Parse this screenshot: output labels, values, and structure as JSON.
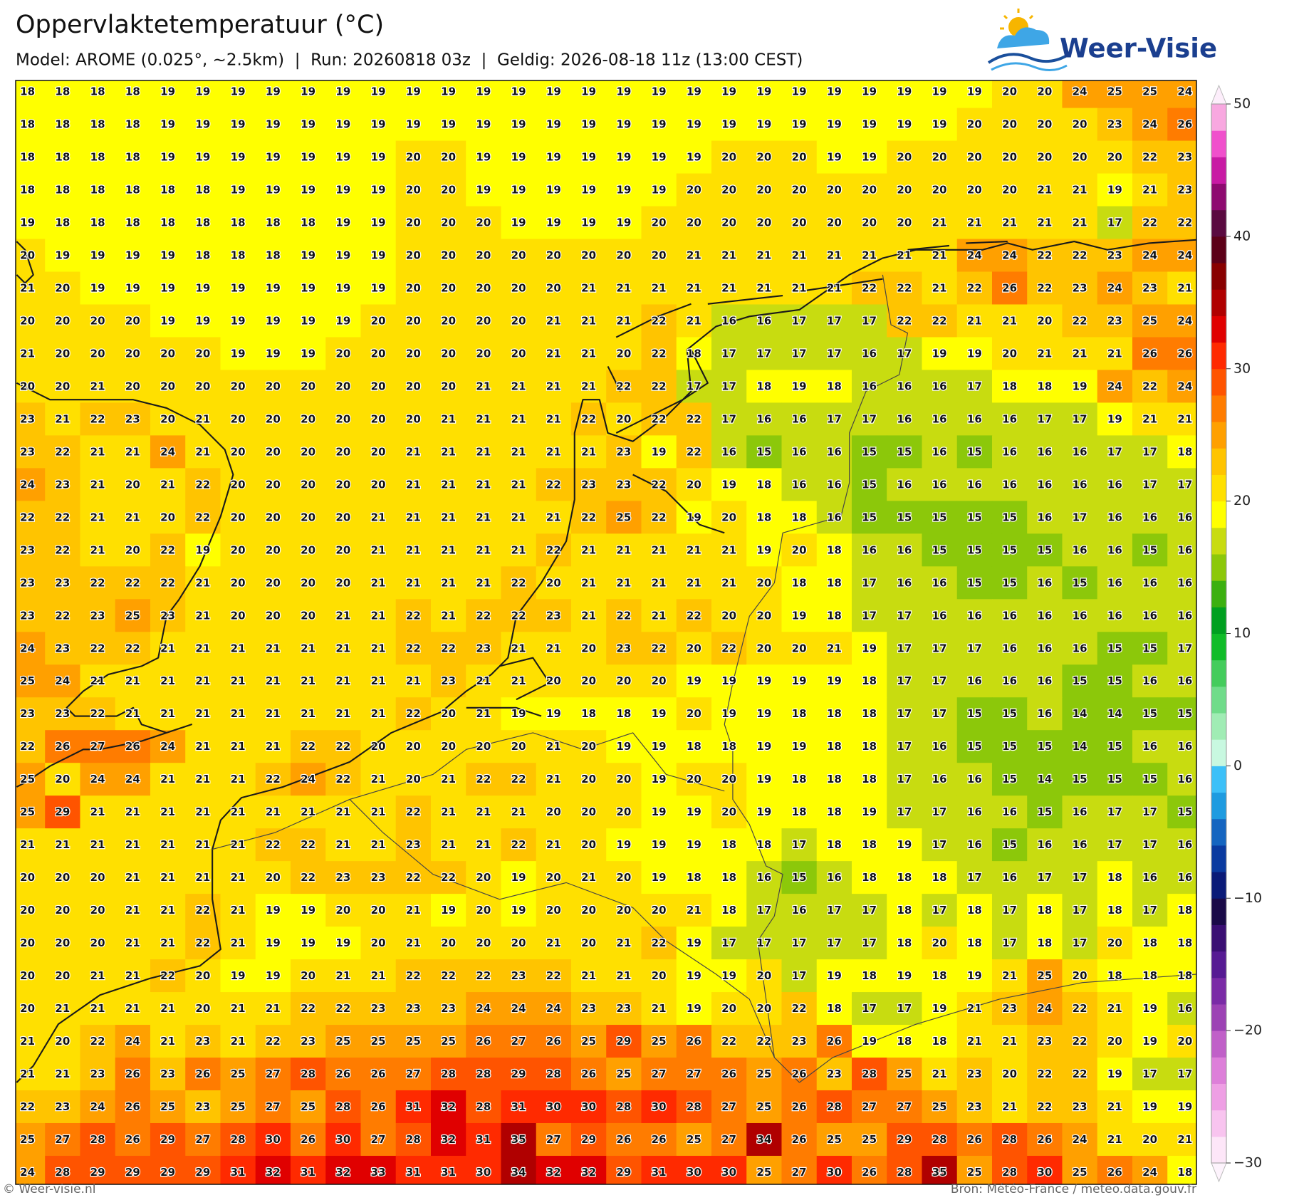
{
  "header": {
    "title": "Oppervlaktetemperatuur (°C)",
    "subtitle": "Model: AROME (0.025°, ~2.5km)  |  Run: 20260818 03z  |  Geldig: 2026-08-18 11z (13:00 CEST)",
    "logo": "Weer-Visie"
  },
  "map": {
    "rows": [
      [
        18,
        18,
        18,
        18,
        19,
        19,
        19,
        19,
        19,
        19,
        19,
        19,
        19,
        19,
        19,
        19,
        19,
        19,
        19,
        19,
        19,
        19,
        19,
        19,
        19,
        19,
        19,
        19,
        20,
        20,
        24,
        25,
        25,
        24
      ],
      [
        18,
        18,
        18,
        18,
        19,
        19,
        19,
        19,
        19,
        19,
        19,
        19,
        19,
        19,
        19,
        19,
        19,
        19,
        19,
        19,
        19,
        19,
        19,
        19,
        19,
        19,
        19,
        20,
        20,
        20,
        20,
        23,
        24,
        26
      ],
      [
        18,
        18,
        18,
        18,
        19,
        19,
        19,
        19,
        19,
        19,
        19,
        20,
        20,
        19,
        19,
        19,
        19,
        19,
        19,
        19,
        20,
        20,
        20,
        19,
        19,
        20,
        20,
        20,
        20,
        20,
        20,
        20,
        22,
        23
      ],
      [
        18,
        18,
        18,
        18,
        18,
        18,
        19,
        19,
        19,
        19,
        19,
        20,
        20,
        19,
        19,
        19,
        19,
        19,
        19,
        20,
        20,
        20,
        20,
        20,
        20,
        20,
        20,
        20,
        20,
        21,
        21,
        19,
        21,
        23
      ],
      [
        19,
        18,
        18,
        18,
        18,
        18,
        18,
        18,
        18,
        19,
        19,
        20,
        20,
        20,
        19,
        19,
        19,
        19,
        20,
        20,
        20,
        20,
        20,
        20,
        20,
        20,
        21,
        21,
        21,
        21,
        21,
        17,
        22,
        22
      ],
      [
        20,
        19,
        19,
        19,
        19,
        18,
        18,
        18,
        19,
        19,
        19,
        20,
        20,
        20,
        20,
        20,
        20,
        20,
        20,
        21,
        21,
        21,
        21,
        21,
        21,
        21,
        21,
        24,
        24,
        22,
        22,
        23,
        24,
        24
      ],
      [
        21,
        20,
        19,
        19,
        19,
        19,
        19,
        19,
        19,
        19,
        19,
        20,
        20,
        20,
        20,
        20,
        21,
        21,
        21,
        21,
        21,
        21,
        21,
        21,
        22,
        22,
        21,
        22,
        26,
        22,
        23,
        24,
        23,
        21
      ],
      [
        20,
        20,
        20,
        20,
        19,
        19,
        19,
        19,
        19,
        19,
        20,
        20,
        20,
        20,
        20,
        21,
        21,
        21,
        22,
        21,
        16,
        16,
        17,
        17,
        17,
        22,
        22,
        21,
        21,
        20,
        22,
        23,
        25,
        24
      ],
      [
        21,
        20,
        20,
        20,
        20,
        20,
        19,
        19,
        19,
        20,
        20,
        20,
        20,
        20,
        20,
        21,
        21,
        20,
        22,
        18,
        17,
        17,
        17,
        17,
        16,
        17,
        19,
        19,
        20,
        21,
        21,
        21,
        26,
        26
      ],
      [
        20,
        20,
        21,
        20,
        20,
        20,
        20,
        20,
        20,
        20,
        20,
        20,
        20,
        21,
        21,
        21,
        21,
        22,
        22,
        17,
        17,
        18,
        19,
        18,
        16,
        16,
        16,
        17,
        18,
        18,
        19,
        24,
        22,
        24
      ],
      [
        23,
        21,
        22,
        23,
        20,
        21,
        20,
        20,
        20,
        20,
        20,
        20,
        21,
        21,
        21,
        21,
        22,
        20,
        22,
        22,
        17,
        16,
        16,
        17,
        17,
        16,
        16,
        16,
        16,
        17,
        17,
        19,
        21,
        21
      ],
      [
        23,
        22,
        21,
        21,
        24,
        21,
        20,
        20,
        20,
        20,
        20,
        21,
        21,
        21,
        21,
        21,
        21,
        23,
        19,
        22,
        16,
        15,
        16,
        16,
        15,
        15,
        16,
        15,
        16,
        16,
        16,
        17,
        17,
        18
      ],
      [
        24,
        23,
        21,
        20,
        21,
        22,
        20,
        20,
        20,
        20,
        20,
        21,
        21,
        21,
        21,
        22,
        23,
        23,
        22,
        20,
        19,
        18,
        16,
        16,
        15,
        16,
        16,
        16,
        16,
        16,
        16,
        16,
        17,
        17
      ],
      [
        22,
        22,
        21,
        21,
        20,
        22,
        20,
        20,
        20,
        20,
        21,
        21,
        21,
        21,
        21,
        21,
        22,
        25,
        22,
        19,
        20,
        18,
        18,
        16,
        15,
        15,
        15,
        15,
        15,
        16,
        17,
        16,
        16,
        16
      ],
      [
        23,
        22,
        21,
        20,
        22,
        19,
        20,
        20,
        20,
        20,
        21,
        21,
        21,
        21,
        21,
        22,
        21,
        21,
        21,
        21,
        21,
        19,
        20,
        18,
        16,
        16,
        15,
        15,
        15,
        15,
        16,
        16,
        15,
        16
      ],
      [
        23,
        23,
        22,
        22,
        22,
        21,
        20,
        20,
        20,
        20,
        21,
        21,
        21,
        21,
        22,
        20,
        21,
        21,
        21,
        21,
        21,
        20,
        18,
        18,
        17,
        16,
        16,
        15,
        15,
        16,
        15,
        16,
        16,
        16
      ],
      [
        23,
        22,
        23,
        25,
        23,
        21,
        20,
        20,
        20,
        21,
        21,
        22,
        21,
        22,
        22,
        23,
        21,
        22,
        21,
        22,
        20,
        20,
        19,
        18,
        17,
        17,
        16,
        16,
        16,
        16,
        16,
        16,
        16,
        16
      ],
      [
        24,
        23,
        22,
        22,
        21,
        21,
        21,
        21,
        21,
        21,
        21,
        22,
        22,
        23,
        21,
        21,
        20,
        23,
        22,
        20,
        22,
        20,
        20,
        21,
        19,
        17,
        17,
        17,
        16,
        16,
        16,
        15,
        15,
        17
      ],
      [
        25,
        24,
        21,
        21,
        21,
        21,
        21,
        21,
        21,
        21,
        21,
        21,
        23,
        21,
        21,
        20,
        20,
        20,
        20,
        19,
        19,
        19,
        19,
        19,
        18,
        17,
        17,
        16,
        16,
        16,
        15,
        15,
        16,
        16
      ],
      [
        23,
        23,
        22,
        21,
        21,
        21,
        21,
        21,
        21,
        21,
        21,
        22,
        20,
        21,
        19,
        19,
        18,
        18,
        19,
        20,
        19,
        19,
        18,
        18,
        18,
        17,
        17,
        15,
        15,
        16,
        14,
        14,
        15,
        15
      ],
      [
        22,
        26,
        27,
        26,
        24,
        21,
        21,
        21,
        22,
        22,
        20,
        20,
        20,
        20,
        20,
        21,
        20,
        19,
        19,
        18,
        18,
        19,
        19,
        18,
        18,
        17,
        16,
        15,
        15,
        15,
        14,
        15,
        16,
        16
      ],
      [
        25,
        20,
        24,
        24,
        21,
        21,
        21,
        22,
        24,
        22,
        21,
        20,
        21,
        22,
        22,
        21,
        20,
        20,
        19,
        20,
        20,
        19,
        18,
        18,
        18,
        17,
        16,
        16,
        15,
        14,
        15,
        15,
        15,
        16
      ],
      [
        25,
        29,
        21,
        21,
        21,
        21,
        21,
        21,
        21,
        21,
        21,
        22,
        21,
        21,
        21,
        20,
        20,
        20,
        19,
        19,
        20,
        19,
        18,
        18,
        19,
        17,
        17,
        16,
        16,
        15,
        16,
        17,
        17,
        15
      ],
      [
        21,
        21,
        21,
        21,
        21,
        21,
        21,
        22,
        22,
        21,
        21,
        23,
        21,
        21,
        22,
        21,
        20,
        19,
        19,
        19,
        18,
        18,
        17,
        18,
        18,
        19,
        17,
        16,
        15,
        16,
        16,
        17,
        17,
        16
      ],
      [
        20,
        20,
        20,
        21,
        21,
        21,
        21,
        20,
        22,
        23,
        23,
        22,
        22,
        20,
        19,
        20,
        21,
        20,
        19,
        18,
        18,
        16,
        15,
        16,
        18,
        18,
        18,
        17,
        16,
        17,
        17,
        18,
        16,
        16
      ],
      [
        20,
        20,
        20,
        21,
        21,
        22,
        21,
        19,
        19,
        20,
        20,
        21,
        19,
        20,
        19,
        20,
        20,
        20,
        20,
        21,
        18,
        17,
        16,
        17,
        17,
        18,
        17,
        18,
        17,
        18,
        17,
        18,
        17,
        18
      ],
      [
        20,
        20,
        20,
        21,
        21,
        22,
        21,
        19,
        19,
        19,
        20,
        21,
        20,
        20,
        20,
        21,
        20,
        21,
        22,
        19,
        17,
        17,
        17,
        17,
        17,
        18,
        20,
        18,
        17,
        18,
        17,
        20,
        18,
        18
      ],
      [
        20,
        20,
        21,
        21,
        22,
        20,
        19,
        19,
        20,
        21,
        21,
        22,
        22,
        22,
        23,
        22,
        21,
        21,
        20,
        19,
        19,
        20,
        17,
        19,
        18,
        19,
        18,
        19,
        21,
        25,
        20,
        18,
        18,
        18
      ],
      [
        20,
        21,
        21,
        21,
        21,
        20,
        21,
        21,
        22,
        22,
        23,
        23,
        23,
        24,
        24,
        24,
        23,
        23,
        21,
        19,
        20,
        20,
        22,
        18,
        17,
        17,
        19,
        21,
        23,
        24,
        22,
        21,
        19,
        16
      ],
      [
        21,
        20,
        22,
        24,
        21,
        23,
        21,
        22,
        23,
        25,
        25,
        25,
        25,
        26,
        27,
        26,
        25,
        29,
        25,
        26,
        22,
        22,
        23,
        26,
        19,
        18,
        18,
        21,
        21,
        23,
        22,
        20,
        19,
        20
      ],
      [
        21,
        21,
        23,
        26,
        23,
        26,
        25,
        27,
        28,
        26,
        26,
        27,
        28,
        28,
        29,
        28,
        26,
        25,
        27,
        27,
        26,
        25,
        26,
        23,
        28,
        25,
        21,
        23,
        20,
        22,
        22,
        19,
        17,
        17
      ],
      [
        22,
        23,
        24,
        26,
        25,
        23,
        25,
        27,
        25,
        28,
        26,
        31,
        32,
        28,
        31,
        30,
        30,
        28,
        30,
        28,
        27,
        25,
        26,
        28,
        27,
        27,
        25,
        23,
        21,
        22,
        23,
        21,
        19,
        19
      ],
      [
        25,
        27,
        28,
        26,
        29,
        27,
        28,
        30,
        26,
        30,
        27,
        28,
        32,
        31,
        35,
        27,
        29,
        26,
        26,
        25,
        27,
        34,
        26,
        25,
        25,
        29,
        28,
        26,
        28,
        26,
        24,
        21,
        20,
        21
      ],
      [
        24,
        28,
        29,
        29,
        29,
        29,
        31,
        32,
        31,
        32,
        33,
        31,
        31,
        30,
        34,
        32,
        32,
        29,
        31,
        30,
        30,
        25,
        27,
        30,
        26,
        28,
        35,
        25,
        28,
        30,
        25,
        26,
        24,
        18
      ]
    ]
  },
  "colorbar": {
    "lim": [
      -30,
      50
    ],
    "ticks": [
      50,
      40,
      30,
      20,
      10,
      0,
      {
        "value": -10,
        "label": "−10"
      },
      {
        "value": -20,
        "label": "−20"
      },
      {
        "value": -30,
        "label": "−30"
      }
    ],
    "colors": [
      "#fde6f8",
      "#f8c4ef",
      "#ee9fe4",
      "#dd7fd9",
      "#c060c8",
      "#9c42b4",
      "#7a2ba6",
      "#561a93",
      "#3a0f73",
      "#1a0a48",
      "#0a1a78",
      "#0a3aa0",
      "#1565c0",
      "#1e9be0",
      "#3cc0f8",
      "#c8f8e0",
      "#a0ecb4",
      "#70dc8a",
      "#44cc5c",
      "#10bc28",
      "#00a020",
      "#3cb010",
      "#8cc80a",
      "#c8dc10",
      "#ffff00",
      "#ffe000",
      "#ffc400",
      "#ffa000",
      "#ff7c00",
      "#ff5400",
      "#ff2a00",
      "#e00000",
      "#b00000",
      "#880000",
      "#5c0018",
      "#5a0a40",
      "#8e0a70",
      "#c81aa4",
      "#f050cc",
      "#f8a8e0"
    ]
  },
  "footer": {
    "left": "© Weer-visie.nl",
    "right": "Bron: Météo-France / meteo.data.gouv.fr"
  }
}
